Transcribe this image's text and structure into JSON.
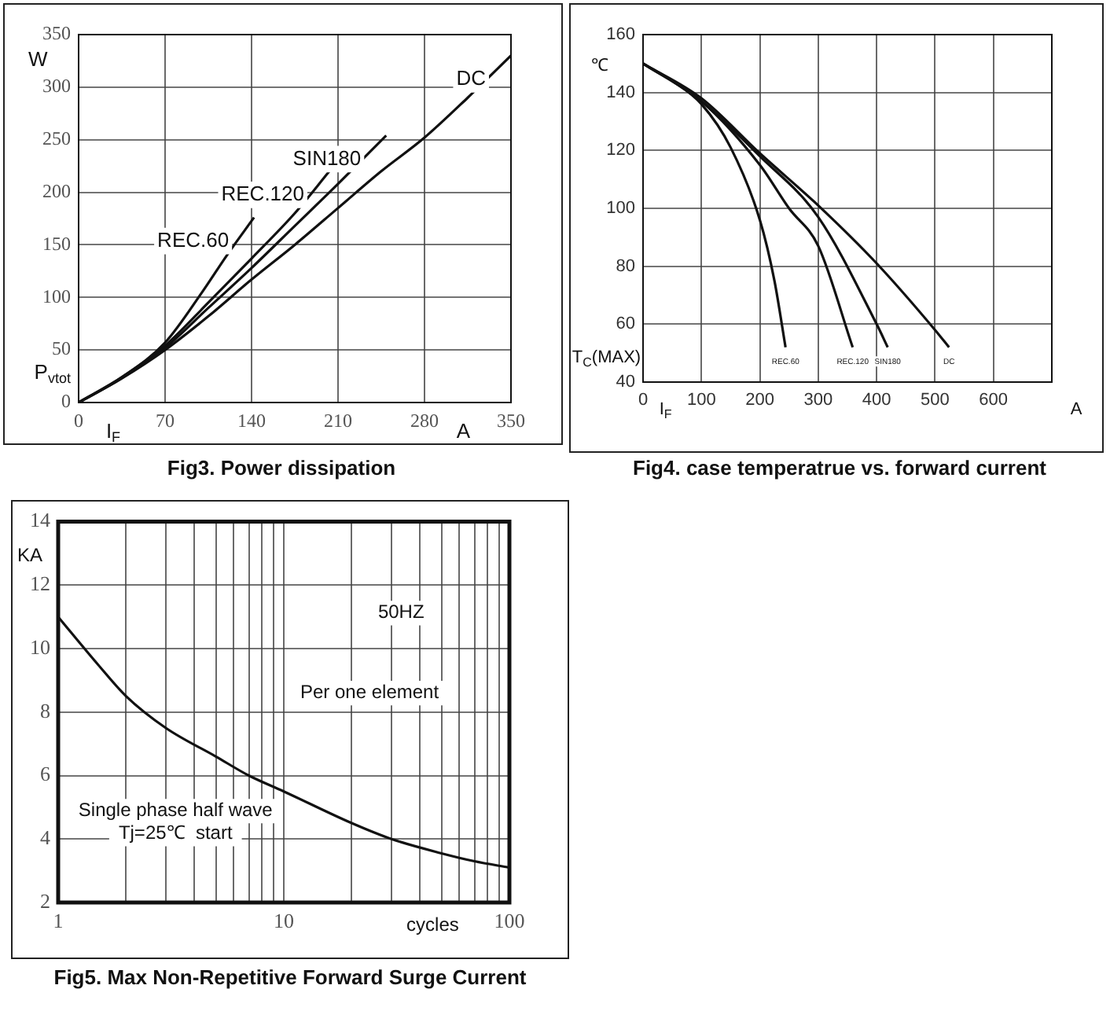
{
  "chart_data": [
    {
      "type": "line",
      "title": "Fig3. Power dissipation",
      "xlabel": "A",
      "ylabel": "W",
      "annotations": [
        "P$_{vtot}$",
        "I$_{F}$"
      ],
      "xlim": [
        0,
        350
      ],
      "ylim": [
        0,
        350
      ],
      "xticks": [
        0,
        70,
        140,
        210,
        280,
        350
      ],
      "yticks": [
        0,
        50,
        100,
        150,
        200,
        250,
        300,
        350
      ],
      "grid": true,
      "series": [
        {
          "name": "REC.60",
          "color": "#111111",
          "x": [
            0,
            35,
            70,
            100,
            120,
            142
          ],
          "values": [
            0,
            24,
            57,
            105,
            140,
            176
          ]
        },
        {
          "name": "REC.120",
          "color": "#111111",
          "x": [
            0,
            35,
            70,
            105,
            140,
            175,
            203
          ],
          "values": [
            0,
            24,
            54,
            95,
            137,
            180,
            220
          ]
        },
        {
          "name": "SIN180",
          "color": "#111111",
          "x": [
            0,
            35,
            70,
            105,
            140,
            175,
            210,
            249
          ],
          "values": [
            0,
            23,
            52,
            90,
            128,
            168,
            208,
            254
          ]
        },
        {
          "name": "DC",
          "color": "#111111",
          "x": [
            0,
            35,
            70,
            105,
            140,
            175,
            210,
            245,
            280,
            315,
            350
          ],
          "values": [
            0,
            23,
            50,
            82,
            117,
            150,
            185,
            220,
            252,
            290,
            330
          ]
        }
      ]
    },
    {
      "type": "line",
      "title": "Fig4. case temperatrue vs. forward current",
      "xlabel": "A",
      "ylabel": "℃",
      "annotations": [
        "T$_{C}$(MAX)",
        "I$_{F}$"
      ],
      "xlim": [
        0,
        700
      ],
      "ylim": [
        40,
        160
      ],
      "xticks": [
        0,
        100,
        200,
        300,
        400,
        500,
        600
      ],
      "yticks": [
        40,
        60,
        80,
        100,
        120,
        140,
        160
      ],
      "grid": true,
      "series": [
        {
          "name": "REC.60",
          "color": "#111111",
          "x": [
            0,
            50,
            100,
            150,
            200,
            225,
            244
          ],
          "values": [
            150,
            144,
            136,
            121,
            96,
            75,
            52
          ]
        },
        {
          "name": "REC.120",
          "color": "#111111",
          "x": [
            0,
            100,
            200,
            250,
            300,
            359
          ],
          "values": [
            150,
            137,
            115,
            100,
            87,
            52
          ]
        },
        {
          "name": "SIN180",
          "color": "#111111",
          "x": [
            0,
            100,
            200,
            300,
            400,
            419
          ],
          "values": [
            150,
            137,
            118,
            97,
            60,
            52
          ]
        },
        {
          "name": "DC",
          "color": "#111111",
          "x": [
            0,
            100,
            200,
            300,
            400,
            500,
            524
          ],
          "values": [
            150,
            138,
            119,
            101,
            81,
            58,
            52
          ]
        }
      ]
    },
    {
      "type": "line",
      "title": "Fig5. Max Non-Repetitive Forward Surge Current",
      "xlabel": "cycles",
      "ylabel": "KA",
      "annotations": [
        "50HZ",
        "Per one element",
        "Single phase half wave",
        "Tj=25℃  start"
      ],
      "log": "x",
      "xlim": [
        1,
        100
      ],
      "ylim": [
        2,
        14
      ],
      "xticks": [
        1,
        {
          "value": 2,
          "label": null
        },
        {
          "value": 3,
          "label": null
        },
        {
          "value": 4,
          "label": null
        },
        {
          "value": 5,
          "label": null
        },
        {
          "value": 6,
          "label": null
        },
        {
          "value": 7,
          "label": null
        },
        {
          "value": 8,
          "label": null
        },
        {
          "value": 9,
          "label": null
        },
        10,
        {
          "value": 20,
          "label": null
        },
        {
          "value": 30,
          "label": null
        },
        {
          "value": 40,
          "label": null
        },
        {
          "value": 50,
          "label": null
        },
        {
          "value": 60,
          "label": null
        },
        {
          "value": 70,
          "label": null
        },
        {
          "value": 80,
          "label": null
        },
        {
          "value": 90,
          "label": null
        },
        100
      ],
      "yticks": [
        2,
        4,
        6,
        8,
        10,
        12,
        14
      ],
      "grid": true,
      "series": [
        {
          "color": "#111111",
          "x": [
            1,
            1.5,
            2,
            3,
            5,
            7,
            10,
            20,
            30,
            50,
            70,
            100
          ],
          "values": [
            11,
            9.5,
            8.5,
            7.5,
            6.6,
            6,
            5.5,
            4.5,
            4,
            3.55,
            3.3,
            3.1
          ]
        }
      ]
    }
  ]
}
